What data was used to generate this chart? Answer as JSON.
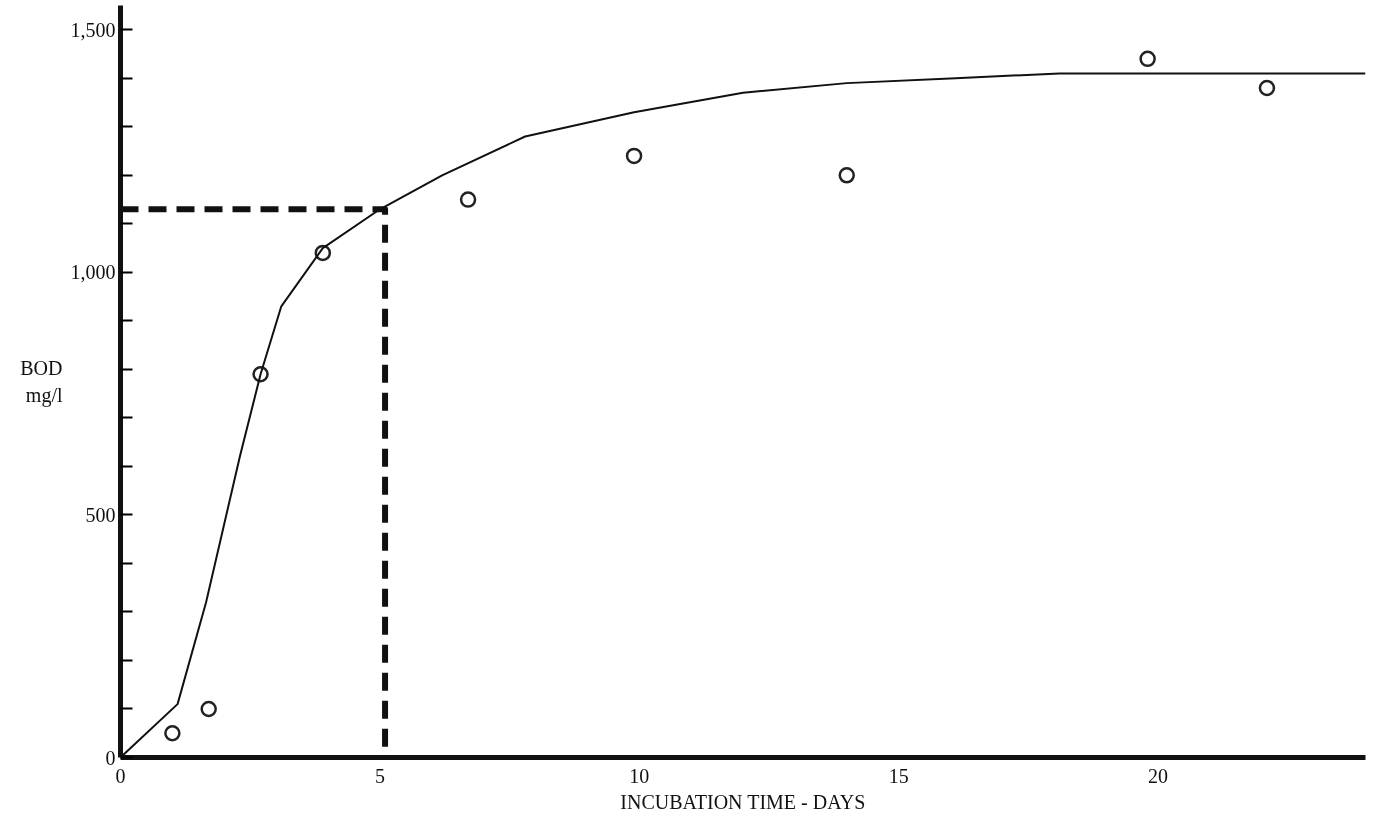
{
  "chart_data": {
    "type": "scatter",
    "xlabel": "INCUBATION TIME - DAYS",
    "ylabel": "BOD\nmg/l",
    "xlim": [
      0,
      24
    ],
    "ylim": [
      0,
      1550
    ],
    "xticks": [
      0,
      5,
      10,
      15,
      20
    ],
    "yticks": [
      0,
      {
        "value": 100,
        "label": null
      },
      {
        "value": 200,
        "label": null
      },
      {
        "value": 300,
        "label": null
      },
      {
        "value": 400,
        "label": null
      },
      500,
      {
        "value": 600,
        "label": null
      },
      {
        "value": 700,
        "label": null
      },
      {
        "value": 800,
        "label": null
      },
      {
        "value": 900,
        "label": null
      },
      {
        "value": 1000,
        "label": "1,000"
      },
      {
        "value": 1100,
        "label": null
      },
      {
        "value": 1200,
        "label": null
      },
      {
        "value": 1300,
        "label": null
      },
      {
        "value": 1400,
        "label": null
      },
      {
        "value": 1500,
        "label": "1,500"
      }
    ],
    "grid": false,
    "marker": "circle",
    "series": [
      {
        "color": "#222222",
        "x": [
          1.0,
          1.7,
          2.7,
          3.9,
          6.7,
          9.9,
          14.0,
          19.8,
          22.1
        ],
        "values": [
          50,
          100,
          790,
          1040,
          1150,
          1240,
          1200,
          1440,
          1380
        ]
      },
      {
        "type": "line",
        "color": "#111111",
        "line_style": "solid",
        "marker": "none",
        "x": [
          0,
          1.1,
          1.65,
          2.3,
          2.7,
          3.1,
          3.9,
          5.0,
          6.2,
          7.8,
          9.9,
          12.0,
          14.0,
          16.1,
          18.1,
          20.2,
          22.1,
          24.0
        ],
        "values": [
          0,
          110,
          320,
          620,
          790,
          930,
          1050,
          1130,
          1200,
          1280,
          1330,
          1370,
          1390,
          1400,
          1410,
          1410,
          1410,
          1410
        ]
      },
      {
        "type": "line",
        "color": "#111111",
        "line_style": "dashed",
        "marker": "none",
        "x": [
          0,
          5.1,
          5.1
        ],
        "values": [
          1130,
          1130,
          0
        ]
      }
    ]
  }
}
